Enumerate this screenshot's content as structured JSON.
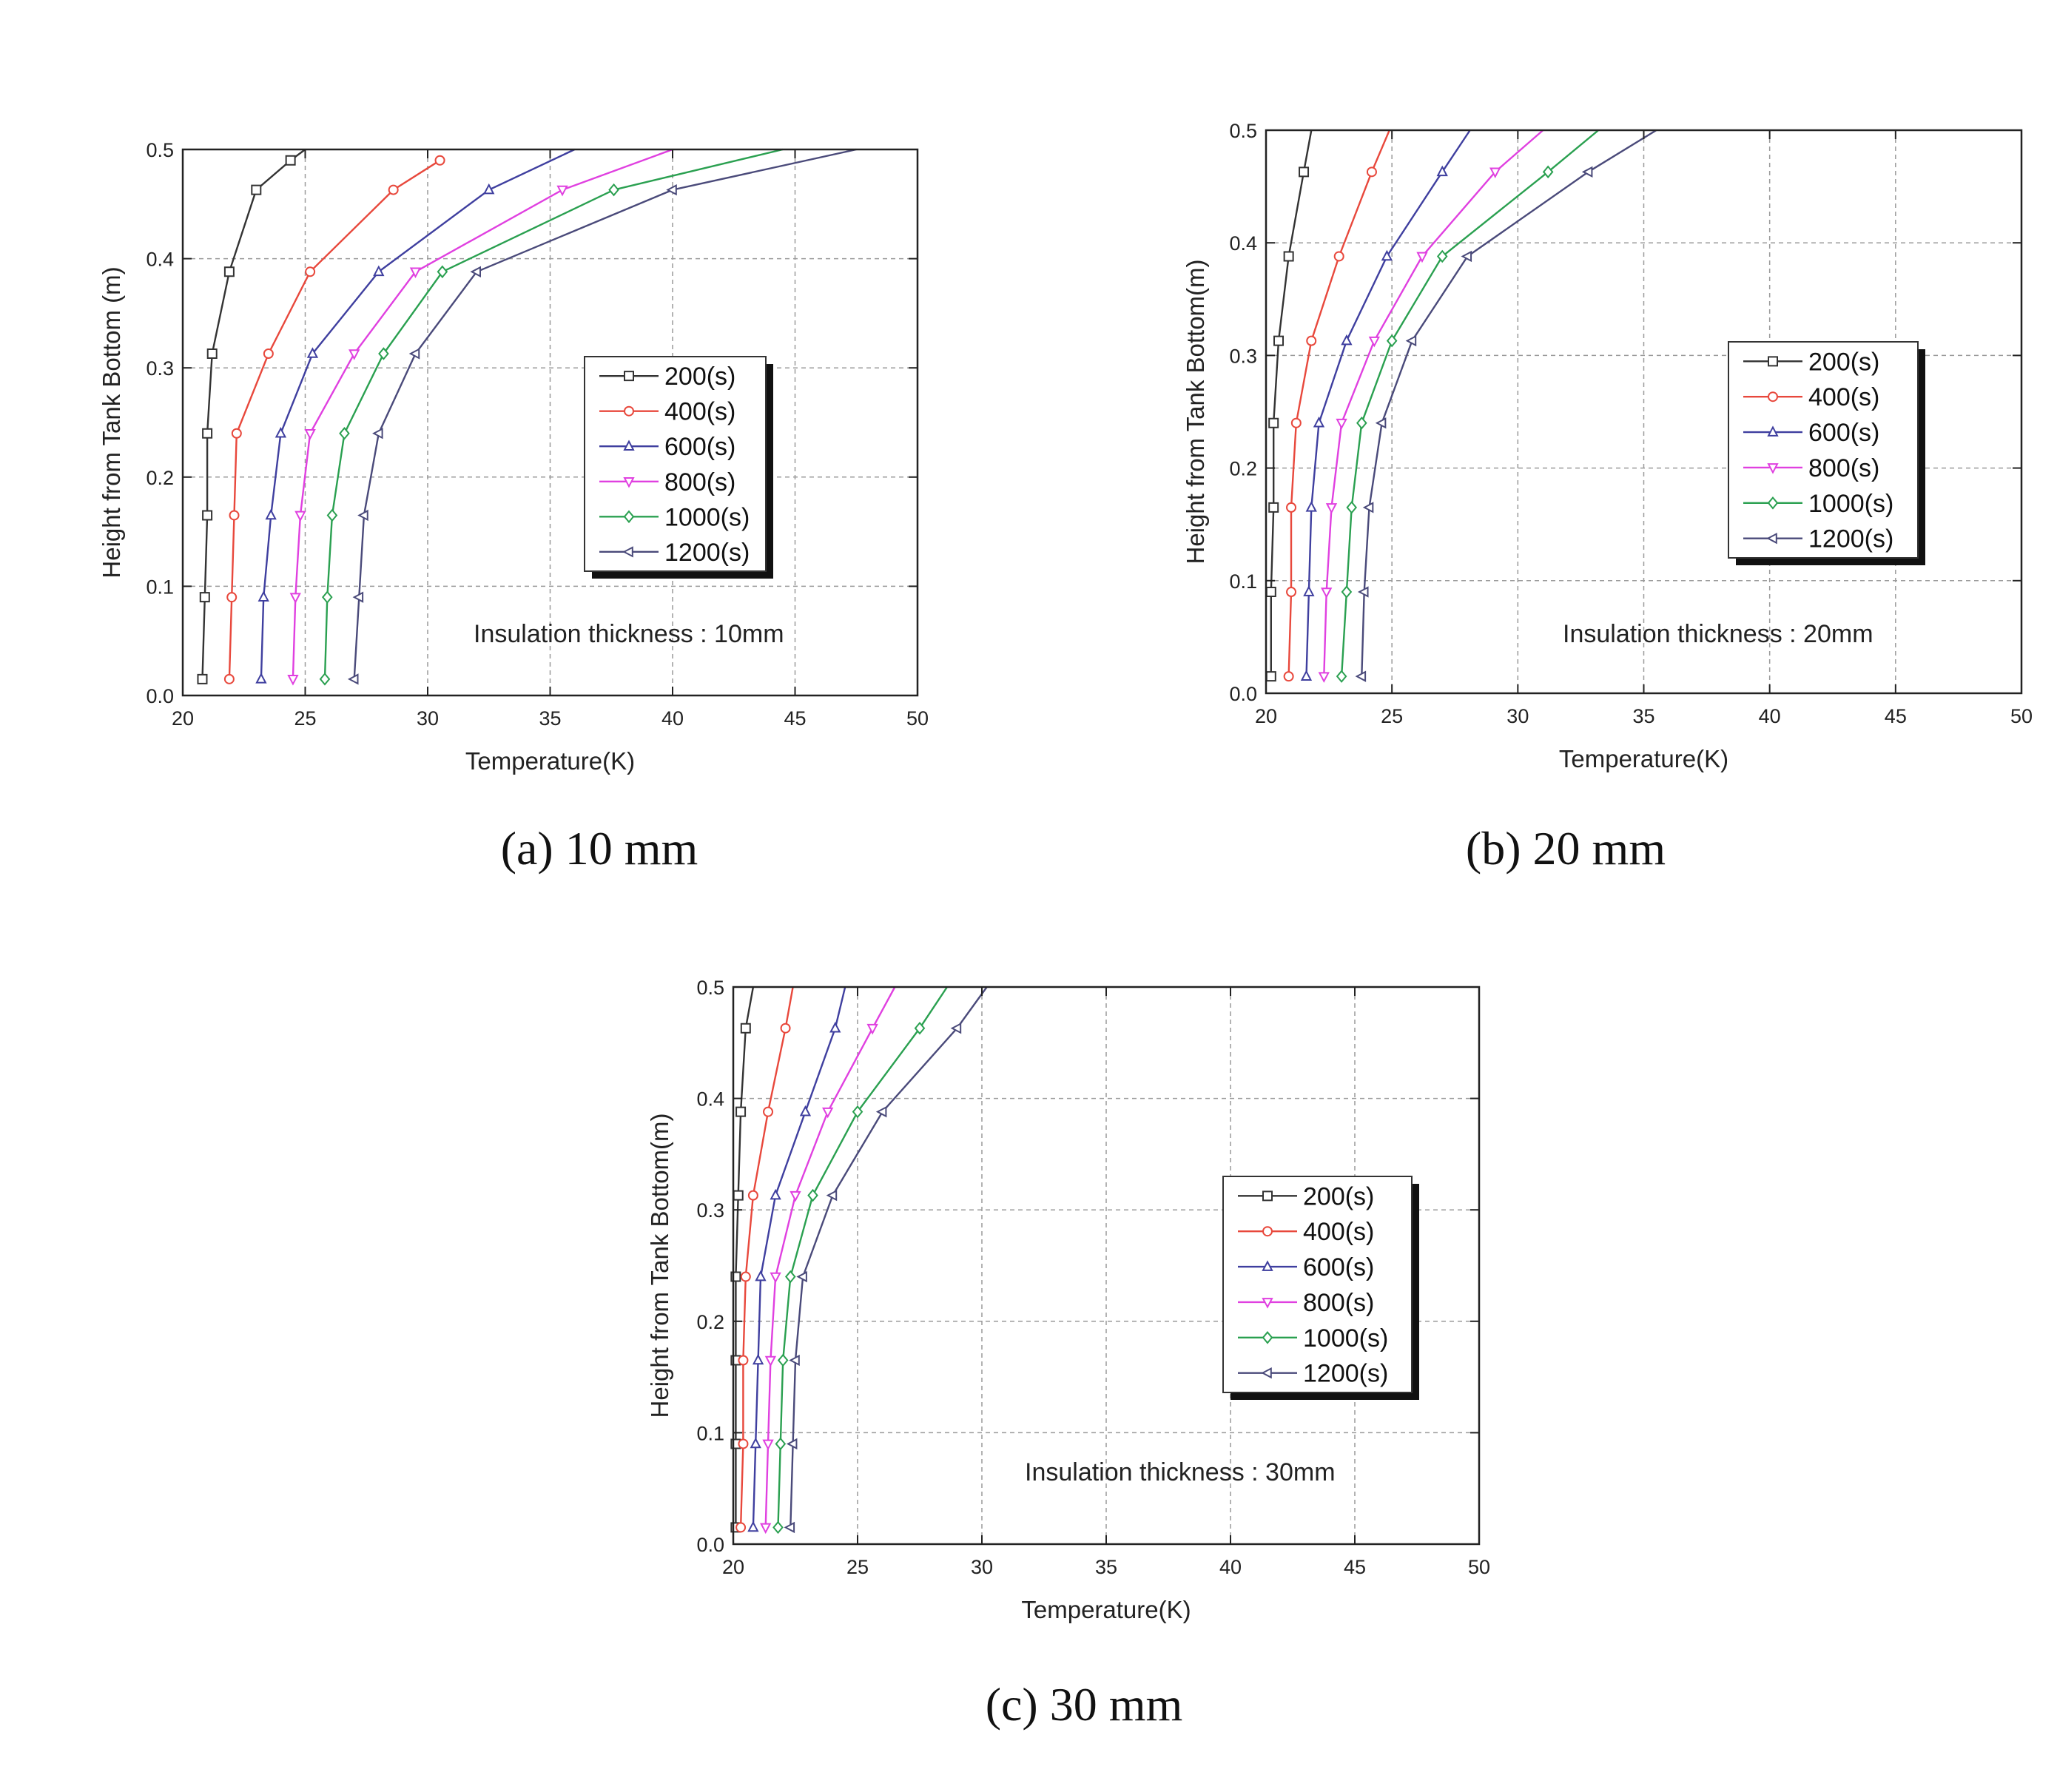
{
  "chart_data": [
    {
      "type": "line",
      "caption": "(a) 10 mm",
      "xlabel": "Temperature(K)",
      "ylabel": "Height from Tank Bottom (m)",
      "xlim": [
        20,
        50
      ],
      "ylim": [
        0.0,
        0.5
      ],
      "xticks": [
        "20",
        "25",
        "30",
        "35",
        "40",
        "45",
        "50"
      ],
      "yticks": [
        "0.0",
        "0.1",
        "0.2",
        "0.3",
        "0.4",
        "0.5"
      ],
      "grid": true,
      "legend_position": "center-right",
      "annotation": "Insulation thickness : 10mm",
      "series": [
        {
          "name": "200(s)",
          "color": "#333333",
          "marker": "square",
          "x": [
            20.8,
            20.9,
            21.0,
            21.0,
            21.2,
            21.9,
            23.0,
            24.4,
            25.0
          ],
          "y": [
            0.015,
            0.09,
            0.165,
            0.24,
            0.313,
            0.388,
            0.463,
            0.49,
            0.5
          ]
        },
        {
          "name": "400(s)",
          "color": "#e8483c",
          "marker": "circle",
          "x": [
            21.9,
            22.0,
            22.1,
            22.2,
            23.5,
            25.2,
            28.6,
            30.5
          ],
          "y": [
            0.015,
            0.09,
            0.165,
            0.24,
            0.313,
            0.388,
            0.463,
            0.49
          ]
        },
        {
          "name": "600(s)",
          "color": "#3f3f9f",
          "marker": "triangle",
          "x": [
            23.2,
            23.3,
            23.6,
            24.0,
            25.3,
            28.0,
            32.5,
            36.0
          ],
          "y": [
            0.015,
            0.09,
            0.165,
            0.24,
            0.313,
            0.388,
            0.463,
            0.5
          ]
        },
        {
          "name": "800(s)",
          "color": "#e040e0",
          "marker": "down-triangle",
          "x": [
            24.5,
            24.6,
            24.8,
            25.2,
            27.0,
            29.5,
            35.5,
            40.0
          ],
          "y": [
            0.015,
            0.09,
            0.165,
            0.24,
            0.313,
            0.388,
            0.463,
            0.5
          ]
        },
        {
          "name": "1000(s)",
          "color": "#2aa050",
          "marker": "diamond",
          "x": [
            25.8,
            25.9,
            26.1,
            26.6,
            28.2,
            30.6,
            37.6,
            44.5
          ],
          "y": [
            0.015,
            0.09,
            0.165,
            0.24,
            0.313,
            0.388,
            0.463,
            0.5
          ]
        },
        {
          "name": "1200(s)",
          "color": "#4a4a7a",
          "marker": "left-triangle",
          "x": [
            27.0,
            27.2,
            27.4,
            28.0,
            29.5,
            32.0,
            40.0,
            47.5
          ],
          "y": [
            0.015,
            0.09,
            0.165,
            0.24,
            0.313,
            0.388,
            0.463,
            0.5
          ]
        }
      ]
    },
    {
      "type": "line",
      "caption": "(b) 20 mm",
      "xlabel": "Temperature(K)",
      "ylabel": "Height from Tank Bottom(m)",
      "xlim": [
        20,
        50
      ],
      "ylim": [
        0.0,
        0.5
      ],
      "xticks": [
        "20",
        "25",
        "30",
        "35",
        "40",
        "45",
        "50"
      ],
      "yticks": [
        "0.0",
        "0.1",
        "0.2",
        "0.3",
        "0.4",
        "0.5"
      ],
      "grid": true,
      "legend_position": "upper-right",
      "annotation": "Insulation thickness : 20mm",
      "series": [
        {
          "name": "200(s)",
          "color": "#333333",
          "marker": "square",
          "x": [
            20.2,
            20.2,
            20.3,
            20.3,
            20.5,
            20.9,
            21.5,
            21.8
          ],
          "y": [
            0.015,
            0.09,
            0.165,
            0.24,
            0.313,
            0.388,
            0.463,
            0.5
          ]
        },
        {
          "name": "400(s)",
          "color": "#e8483c",
          "marker": "circle",
          "x": [
            20.9,
            21.0,
            21.0,
            21.2,
            21.8,
            22.9,
            24.2,
            24.9
          ],
          "y": [
            0.015,
            0.09,
            0.165,
            0.24,
            0.313,
            0.388,
            0.463,
            0.5
          ]
        },
        {
          "name": "600(s)",
          "color": "#3f3f9f",
          "marker": "triangle",
          "x": [
            21.6,
            21.7,
            21.8,
            22.1,
            23.2,
            24.8,
            27.0,
            28.1
          ],
          "y": [
            0.015,
            0.09,
            0.165,
            0.24,
            0.313,
            0.388,
            0.463,
            0.5
          ]
        },
        {
          "name": "800(s)",
          "color": "#e040e0",
          "marker": "down-triangle",
          "x": [
            22.3,
            22.4,
            22.6,
            23.0,
            24.3,
            26.2,
            29.1,
            31.0
          ],
          "y": [
            0.015,
            0.09,
            0.165,
            0.24,
            0.313,
            0.388,
            0.463,
            0.5
          ]
        },
        {
          "name": "1000(s)",
          "color": "#2aa050",
          "marker": "diamond",
          "x": [
            23.0,
            23.2,
            23.4,
            23.8,
            25.0,
            27.0,
            31.2,
            33.2
          ],
          "y": [
            0.015,
            0.09,
            0.165,
            0.24,
            0.313,
            0.388,
            0.463,
            0.5
          ]
        },
        {
          "name": "1200(s)",
          "color": "#4a4a7a",
          "marker": "left-triangle",
          "x": [
            23.8,
            23.9,
            24.1,
            24.6,
            25.8,
            28.0,
            32.8,
            35.5
          ],
          "y": [
            0.015,
            0.09,
            0.165,
            0.24,
            0.313,
            0.388,
            0.463,
            0.5
          ]
        }
      ]
    },
    {
      "type": "line",
      "caption": "(c) 30 mm",
      "xlabel": "Temperature(K)",
      "ylabel": "Height from Tank Bottom(m)",
      "xlim": [
        20,
        50
      ],
      "ylim": [
        0.0,
        0.5
      ],
      "xticks": [
        "20",
        "25",
        "30",
        "35",
        "40",
        "45",
        "50"
      ],
      "yticks": [
        "0.0",
        "0.1",
        "0.2",
        "0.3",
        "0.4",
        "0.5"
      ],
      "grid": true,
      "legend_position": "center-right",
      "annotation": "Insulation thickness : 30mm",
      "series": [
        {
          "name": "200(s)",
          "color": "#333333",
          "marker": "square",
          "x": [
            20.1,
            20.1,
            20.1,
            20.1,
            20.2,
            20.3,
            20.5,
            20.8
          ],
          "y": [
            0.015,
            0.09,
            0.165,
            0.24,
            0.313,
            0.388,
            0.463,
            0.5
          ]
        },
        {
          "name": "400(s)",
          "color": "#e8483c",
          "marker": "circle",
          "x": [
            20.3,
            20.4,
            20.4,
            20.5,
            20.8,
            21.4,
            22.1,
            22.4
          ],
          "y": [
            0.015,
            0.09,
            0.165,
            0.24,
            0.313,
            0.388,
            0.463,
            0.5
          ]
        },
        {
          "name": "600(s)",
          "color": "#3f3f9f",
          "marker": "triangle",
          "x": [
            20.8,
            20.9,
            21.0,
            21.1,
            21.7,
            22.9,
            24.1,
            24.5
          ],
          "y": [
            0.015,
            0.09,
            0.165,
            0.24,
            0.313,
            0.388,
            0.463,
            0.5
          ]
        },
        {
          "name": "800(s)",
          "color": "#e040e0",
          "marker": "down-triangle",
          "x": [
            21.3,
            21.4,
            21.5,
            21.7,
            22.5,
            23.8,
            25.6,
            26.5
          ],
          "y": [
            0.015,
            0.09,
            0.165,
            0.24,
            0.313,
            0.388,
            0.463,
            0.5
          ]
        },
        {
          "name": "1000(s)",
          "color": "#2aa050",
          "marker": "diamond",
          "x": [
            21.8,
            21.9,
            22.0,
            22.3,
            23.2,
            25.0,
            27.5,
            28.6
          ],
          "y": [
            0.015,
            0.09,
            0.165,
            0.24,
            0.313,
            0.388,
            0.463,
            0.5
          ]
        },
        {
          "name": "1200(s)",
          "color": "#4a4a7a",
          "marker": "left-triangle",
          "x": [
            22.3,
            22.4,
            22.5,
            22.8,
            24.0,
            26.0,
            29.0,
            30.2
          ],
          "y": [
            0.015,
            0.09,
            0.165,
            0.24,
            0.313,
            0.388,
            0.463,
            0.5
          ]
        }
      ]
    }
  ]
}
